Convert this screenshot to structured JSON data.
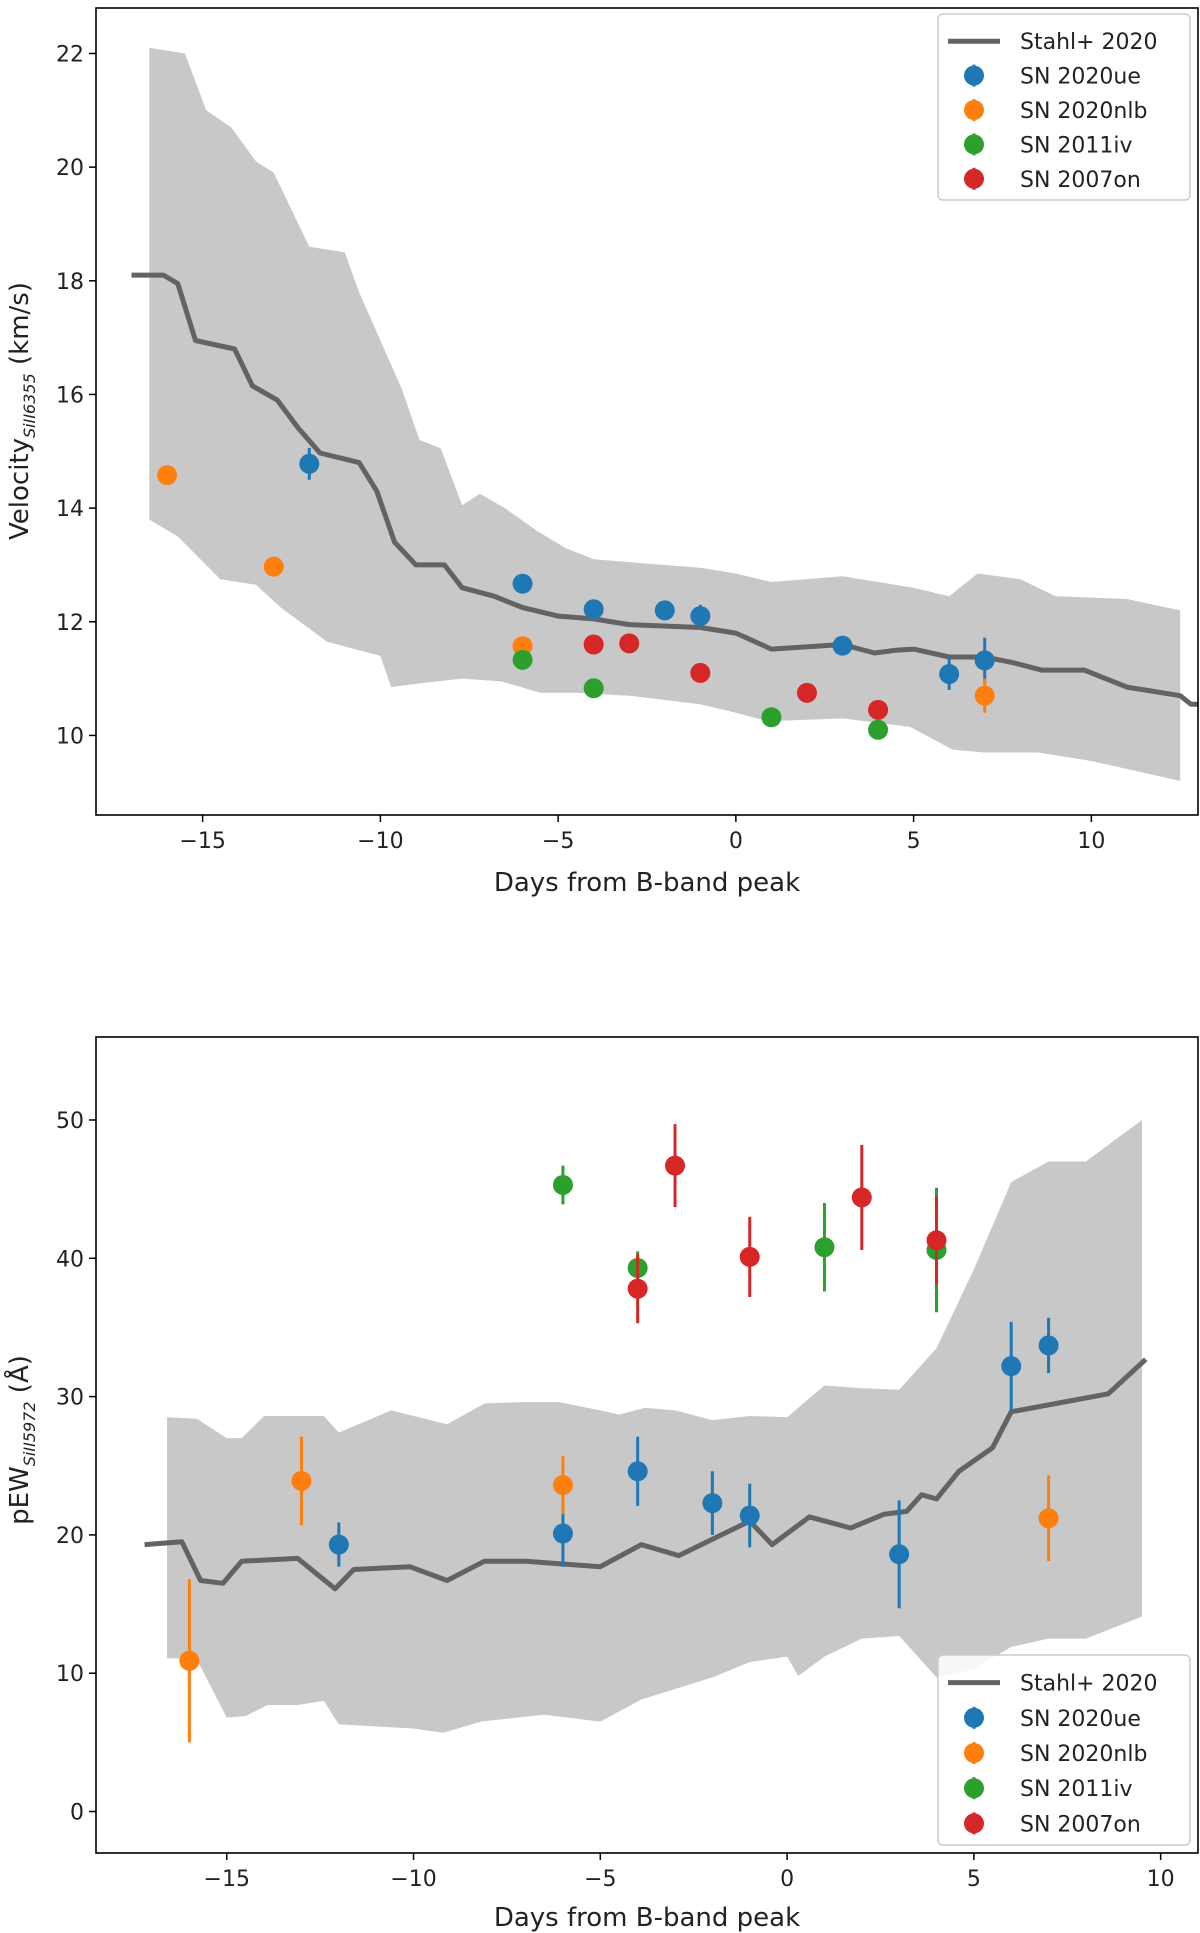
{
  "chart_data": [
    {
      "type": "scatter",
      "id": "velocity",
      "xlabel": "Days from B-band peak",
      "ylabel_main": "Velocity",
      "ylabel_sub": "SiII6355",
      "ylabel_unit": " (km/s)",
      "xlim": [
        -18.0,
        13.0
      ],
      "ylim": [
        8.6,
        22.8
      ],
      "xticks": [
        -15,
        -10,
        -5,
        0,
        5,
        10
      ],
      "yticks": [
        10,
        12,
        14,
        16,
        18,
        20,
        22
      ],
      "legend_position": "top-right",
      "reference": {
        "name": "Stahl+ 2020",
        "color": "#636363",
        "line": [
          [
            -17,
            18.1
          ],
          [
            -16.1,
            18.1
          ],
          [
            -15.7,
            17.95
          ],
          [
            -15.2,
            16.95
          ],
          [
            -14.1,
            16.8
          ],
          [
            -13.6,
            16.15
          ],
          [
            -12.9,
            15.9
          ],
          [
            -12.3,
            15.4
          ],
          [
            -11.7,
            14.97
          ],
          [
            -10.6,
            14.8
          ],
          [
            -10.1,
            14.3
          ],
          [
            -9.6,
            13.4
          ],
          [
            -9.0,
            13.0
          ],
          [
            -8.2,
            13.0
          ],
          [
            -7.7,
            12.6
          ],
          [
            -6.8,
            12.45
          ],
          [
            -6.0,
            12.25
          ],
          [
            -5.0,
            12.1
          ],
          [
            -4.0,
            12.05
          ],
          [
            -3.0,
            11.95
          ],
          [
            -1.0,
            11.9
          ],
          [
            0.0,
            11.8
          ],
          [
            1.0,
            11.52
          ],
          [
            3.0,
            11.6
          ],
          [
            3.9,
            11.45
          ],
          [
            4.5,
            11.5
          ],
          [
            5.0,
            11.52
          ],
          [
            6.0,
            11.38
          ],
          [
            7.0,
            11.38
          ],
          [
            7.8,
            11.28
          ],
          [
            8.6,
            11.15
          ],
          [
            9.8,
            11.15
          ],
          [
            11.0,
            10.85
          ],
          [
            12.5,
            10.7
          ],
          [
            12.8,
            10.55
          ],
          [
            13.0,
            10.55
          ]
        ],
        "band_upper": [
          [
            -16.5,
            22.1
          ],
          [
            -15.5,
            22.0
          ],
          [
            -14.9,
            21.0
          ],
          [
            -14.2,
            20.7
          ],
          [
            -13.5,
            20.1
          ],
          [
            -13.0,
            19.9
          ],
          [
            -12.0,
            18.6
          ],
          [
            -11.0,
            18.5
          ],
          [
            -10.6,
            17.8
          ],
          [
            -9.4,
            16.1
          ],
          [
            -8.9,
            15.2
          ],
          [
            -8.3,
            15.05
          ],
          [
            -7.7,
            14.05
          ],
          [
            -7.2,
            14.25
          ],
          [
            -6.5,
            14.0
          ],
          [
            -5.6,
            13.6
          ],
          [
            -4.8,
            13.3
          ],
          [
            -4.0,
            13.1
          ],
          [
            -3.0,
            13.05
          ],
          [
            -1.0,
            12.95
          ],
          [
            0.0,
            12.85
          ],
          [
            1.0,
            12.7
          ],
          [
            3.0,
            12.8
          ],
          [
            5.0,
            12.6
          ],
          [
            6.0,
            12.45
          ],
          [
            6.8,
            12.85
          ],
          [
            8.0,
            12.75
          ],
          [
            9.0,
            12.45
          ],
          [
            11.0,
            12.4
          ],
          [
            12.5,
            12.2
          ]
        ],
        "band_lower": [
          [
            -16.5,
            13.8
          ],
          [
            -15.7,
            13.5
          ],
          [
            -14.5,
            12.75
          ],
          [
            -13.5,
            12.65
          ],
          [
            -12.8,
            12.25
          ],
          [
            -11.5,
            11.65
          ],
          [
            -10.0,
            11.4
          ],
          [
            -9.7,
            10.85
          ],
          [
            -9.1,
            10.9
          ],
          [
            -7.7,
            11.0
          ],
          [
            -6.6,
            10.95
          ],
          [
            -5.5,
            10.75
          ],
          [
            -4.5,
            10.75
          ],
          [
            -3.0,
            10.7
          ],
          [
            -1.0,
            10.55
          ],
          [
            0.0,
            10.4
          ],
          [
            0.9,
            10.25
          ],
          [
            3.0,
            10.3
          ],
          [
            4.9,
            10.15
          ],
          [
            6.1,
            9.75
          ],
          [
            7.0,
            9.7
          ],
          [
            8.5,
            9.7
          ],
          [
            10.0,
            9.55
          ],
          [
            12.5,
            9.2
          ]
        ]
      },
      "series": [
        {
          "name": "SN 2020ue",
          "color": "#1f77b4",
          "points": [
            [
              -12.0,
              14.78,
              0.28
            ],
            [
              -6.0,
              12.67,
              0.12
            ],
            [
              -4.0,
              12.22,
              0.12
            ],
            [
              -2.0,
              12.2,
              0.15
            ],
            [
              -1.0,
              12.1,
              0.2
            ],
            [
              3.0,
              11.58,
              0.12
            ],
            [
              6.0,
              11.08,
              0.28
            ],
            [
              7.0,
              11.32,
              0.4
            ]
          ]
        },
        {
          "name": "SN 2020nlb",
          "color": "#ff7f0e",
          "points": [
            [
              -16.0,
              14.58,
              0.08
            ],
            [
              -13.0,
              12.97,
              0.08
            ],
            [
              -6.0,
              11.57,
              0.12
            ],
            [
              7.0,
              10.7,
              0.3
            ]
          ]
        },
        {
          "name": "SN 2011iv",
          "color": "#2ca02c",
          "points": [
            [
              -6.0,
              11.33,
              0.08
            ],
            [
              -4.0,
              10.83,
              0.08
            ],
            [
              1.0,
              10.32,
              0.12
            ],
            [
              4.0,
              10.1,
              0.12
            ]
          ]
        },
        {
          "name": "SN 2007on",
          "color": "#d62728",
          "points": [
            [
              -4.0,
              11.6,
              0.08
            ],
            [
              -3.0,
              11.62,
              0.08
            ],
            [
              -1.0,
              11.1,
              0.08
            ],
            [
              2.0,
              10.75,
              0.08
            ],
            [
              4.0,
              10.45,
              0.1
            ]
          ]
        }
      ]
    },
    {
      "type": "scatter",
      "id": "pew",
      "xlabel": "Days from B-band peak",
      "ylabel_main": "pEW",
      "ylabel_sub": "SiII5972",
      "ylabel_unit": " (Å)",
      "xlim": [
        -18.5,
        11.0
      ],
      "ylim": [
        -3.0,
        56.0
      ],
      "xticks": [
        -15,
        -10,
        -5,
        0,
        5,
        10
      ],
      "yticks": [
        0,
        10,
        20,
        30,
        40,
        50
      ],
      "legend_position": "bottom-right",
      "reference": {
        "name": "Stahl+ 2020",
        "color": "#636363",
        "line": [
          [
            -17.2,
            19.3
          ],
          [
            -16.2,
            19.5
          ],
          [
            -15.7,
            16.7
          ],
          [
            -15.1,
            16.5
          ],
          [
            -14.6,
            18.1
          ],
          [
            -13.1,
            18.3
          ],
          [
            -12.1,
            16.1
          ],
          [
            -11.6,
            17.5
          ],
          [
            -10.1,
            17.7
          ],
          [
            -9.1,
            16.7
          ],
          [
            -8.1,
            18.1
          ],
          [
            -7.0,
            18.1
          ],
          [
            -5.0,
            17.7
          ],
          [
            -3.9,
            19.3
          ],
          [
            -2.9,
            18.5
          ],
          [
            -1.0,
            21.0
          ],
          [
            -0.4,
            19.3
          ],
          [
            0.6,
            21.3
          ],
          [
            1.7,
            20.5
          ],
          [
            2.6,
            21.5
          ],
          [
            3.2,
            21.7
          ],
          [
            3.6,
            22.9
          ],
          [
            4.0,
            22.6
          ],
          [
            4.6,
            24.6
          ],
          [
            5.5,
            26.3
          ],
          [
            6.0,
            28.9
          ],
          [
            8.6,
            30.2
          ],
          [
            9.6,
            32.7
          ]
        ],
        "band_upper": [
          [
            -16.6,
            28.5
          ],
          [
            -15.8,
            28.4
          ],
          [
            -15.0,
            27.0
          ],
          [
            -14.6,
            27.0
          ],
          [
            -14.0,
            28.6
          ],
          [
            -12.4,
            28.6
          ],
          [
            -12.0,
            27.4
          ],
          [
            -10.6,
            29.0
          ],
          [
            -9.1,
            28.0
          ],
          [
            -8.1,
            29.5
          ],
          [
            -7.1,
            29.6
          ],
          [
            -6.1,
            29.6
          ],
          [
            -5.0,
            29.0
          ],
          [
            -4.5,
            28.7
          ],
          [
            -3.8,
            29.2
          ],
          [
            -3.0,
            29.0
          ],
          [
            -2.0,
            28.3
          ],
          [
            -1.0,
            28.6
          ],
          [
            0.0,
            28.5
          ],
          [
            1.0,
            30.8
          ],
          [
            2.0,
            30.6
          ],
          [
            3.0,
            30.5
          ],
          [
            4.0,
            33.5
          ],
          [
            5.0,
            39.2
          ],
          [
            6.0,
            45.5
          ],
          [
            7.0,
            47.0
          ],
          [
            8.0,
            47.0
          ],
          [
            9.5,
            50.0
          ]
        ],
        "band_lower": [
          [
            -16.6,
            11.1
          ],
          [
            -15.8,
            11.0
          ],
          [
            -15.0,
            6.8
          ],
          [
            -14.5,
            6.9
          ],
          [
            -13.9,
            7.7
          ],
          [
            -13.1,
            7.7
          ],
          [
            -12.4,
            8.0
          ],
          [
            -12.0,
            6.3
          ],
          [
            -10.0,
            6.0
          ],
          [
            -9.2,
            5.7
          ],
          [
            -8.2,
            6.5
          ],
          [
            -6.5,
            7.0
          ],
          [
            -5.0,
            6.5
          ],
          [
            -3.9,
            8.1
          ],
          [
            -2.0,
            9.7
          ],
          [
            -1.0,
            10.8
          ],
          [
            0.0,
            11.2
          ],
          [
            0.3,
            9.8
          ],
          [
            1.0,
            11.2
          ],
          [
            2.0,
            12.5
          ],
          [
            3.0,
            12.7
          ],
          [
            4.0,
            9.7
          ],
          [
            5.0,
            10.3
          ],
          [
            6.0,
            11.9
          ],
          [
            7.0,
            12.5
          ],
          [
            8.0,
            12.5
          ],
          [
            9.5,
            14.1
          ]
        ]
      },
      "series": [
        {
          "name": "SN 2020ue",
          "color": "#1f77b4",
          "points": [
            [
              -12.0,
              19.3,
              1.6
            ],
            [
              -6.0,
              20.1,
              2.4
            ],
            [
              -4.0,
              24.6,
              2.5
            ],
            [
              -2.0,
              22.3,
              2.3
            ],
            [
              -1.0,
              21.4,
              2.3
            ],
            [
              3.0,
              18.6,
              3.9
            ],
            [
              6.0,
              32.2,
              3.2
            ],
            [
              7.0,
              33.7,
              2.0
            ]
          ]
        },
        {
          "name": "SN 2020nlb",
          "color": "#ff7f0e",
          "points": [
            [
              -16.0,
              10.9,
              5.9
            ],
            [
              -13.0,
              23.9,
              3.2
            ],
            [
              -6.0,
              23.6,
              2.1
            ],
            [
              7.0,
              21.2,
              3.1
            ]
          ]
        },
        {
          "name": "SN 2011iv",
          "color": "#2ca02c",
          "points": [
            [
              -6.0,
              45.3,
              1.4
            ],
            [
              -4.0,
              39.3,
              1.2
            ],
            [
              1.0,
              40.8,
              3.2
            ],
            [
              4.0,
              40.6,
              4.5
            ]
          ]
        },
        {
          "name": "SN 2007on",
          "color": "#d62728",
          "points": [
            [
              -4.0,
              37.8,
              2.5
            ],
            [
              -3.0,
              46.7,
              3.0
            ],
            [
              -1.0,
              40.1,
              2.9
            ],
            [
              2.0,
              44.4,
              3.8
            ],
            [
              4.0,
              41.3,
              3.2
            ]
          ]
        }
      ]
    }
  ]
}
